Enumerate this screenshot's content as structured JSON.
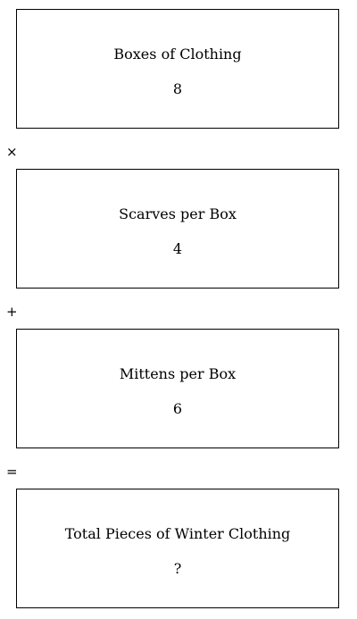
{
  "boxes": [
    {
      "label": "Boxes of Clothing",
      "value": "8"
    },
    {
      "label": "Scarves per Box",
      "value": "4"
    },
    {
      "label": "Mittens per Box",
      "value": "6"
    },
    {
      "label": "Total Pieces of Winter Clothing",
      "value": "?"
    }
  ],
  "operators": [
    "×",
    "+",
    "="
  ]
}
